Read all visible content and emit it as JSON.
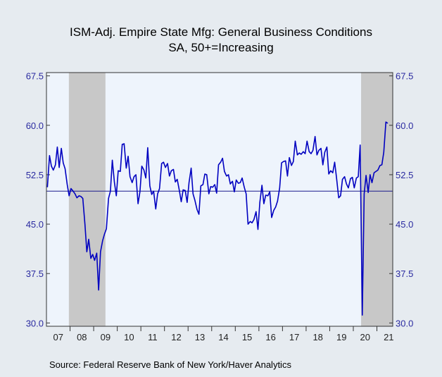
{
  "chart_data": {
    "type": "line",
    "title": "ISM-Adj. Empire State Mfg: General Business Conditions",
    "subtitle": "SA, 50+=Increasing",
    "source": "Source:  Federal Reserve Bank of New York/Haver Analytics",
    "color": "#0000c0",
    "reference_line": 50,
    "shaded_ranges": [
      [
        2007.95,
        2009.5
      ],
      [
        2020.33,
        2021.67
      ]
    ],
    "xlim": [
      2007,
      2021.67
    ],
    "ylim": [
      29.5,
      68
    ],
    "yticks": [
      {
        "value": 30,
        "label": "30.0"
      },
      37.5,
      {
        "value": 45,
        "label": "45.0"
      },
      52.5,
      {
        "value": 60,
        "label": "60.0"
      },
      67.5
    ],
    "xticks": [
      {
        "value": 2007.5,
        "label": "07"
      },
      {
        "value": 2008.5,
        "label": "08"
      },
      {
        "value": 2009.5,
        "label": "09"
      },
      {
        "value": 2010.5,
        "label": "10"
      },
      {
        "value": 2011.5,
        "label": "11"
      },
      {
        "value": 2012.5,
        "label": "12"
      },
      {
        "value": 2013.5,
        "label": "13"
      },
      {
        "value": 2014.5,
        "label": "14"
      },
      {
        "value": 2015.5,
        "label": "15"
      },
      {
        "value": 2016.5,
        "label": "16"
      },
      {
        "value": 2017.5,
        "label": "17"
      },
      {
        "value": 2018.5,
        "label": "18"
      },
      {
        "value": 2019.5,
        "label": "19"
      },
      {
        "value": 2020.5,
        "label": "20"
      },
      {
        "value": 2021.5,
        "label": "21"
      }
    ],
    "x": [
      2007.04,
      2007.13,
      2007.21,
      2007.29,
      2007.38,
      2007.46,
      2007.54,
      2007.63,
      2007.71,
      2007.79,
      2007.88,
      2007.96,
      2008.04,
      2008.13,
      2008.21,
      2008.29,
      2008.38,
      2008.46,
      2008.54,
      2008.63,
      2008.71,
      2008.79,
      2008.88,
      2008.96,
      2009.04,
      2009.13,
      2009.21,
      2009.29,
      2009.38,
      2009.46,
      2009.54,
      2009.63,
      2009.71,
      2009.79,
      2009.88,
      2009.96,
      2010.04,
      2010.13,
      2010.21,
      2010.29,
      2010.38,
      2010.46,
      2010.54,
      2010.63,
      2010.71,
      2010.79,
      2010.88,
      2010.96,
      2011.04,
      2011.13,
      2011.21,
      2011.29,
      2011.38,
      2011.46,
      2011.54,
      2011.63,
      2011.71,
      2011.79,
      2011.88,
      2011.96,
      2012.04,
      2012.13,
      2012.21,
      2012.29,
      2012.38,
      2012.46,
      2012.54,
      2012.63,
      2012.71,
      2012.79,
      2012.88,
      2012.96,
      2013.04,
      2013.13,
      2013.21,
      2013.29,
      2013.38,
      2013.46,
      2013.54,
      2013.63,
      2013.71,
      2013.79,
      2013.88,
      2013.96,
      2014.04,
      2014.13,
      2014.21,
      2014.29,
      2014.38,
      2014.46,
      2014.54,
      2014.63,
      2014.71,
      2014.79,
      2014.88,
      2014.96,
      2015.04,
      2015.13,
      2015.21,
      2015.29,
      2015.38,
      2015.46,
      2015.54,
      2015.63,
      2015.71,
      2015.79,
      2015.88,
      2015.96,
      2016.04,
      2016.13,
      2016.21,
      2016.29,
      2016.38,
      2016.46,
      2016.54,
      2016.63,
      2016.71,
      2016.79,
      2016.88,
      2016.96,
      2017.04,
      2017.13,
      2017.21,
      2017.29,
      2017.38,
      2017.46,
      2017.54,
      2017.63,
      2017.71,
      2017.79,
      2017.88,
      2017.96,
      2018.04,
      2018.13,
      2018.21,
      2018.29,
      2018.38,
      2018.46,
      2018.54,
      2018.63,
      2018.71,
      2018.79,
      2018.88,
      2018.96,
      2019.04,
      2019.13,
      2019.21,
      2019.29,
      2019.38,
      2019.46,
      2019.54,
      2019.63,
      2019.71,
      2019.79,
      2019.88,
      2019.96,
      2020.04,
      2020.13,
      2020.21,
      2020.29,
      2020.38,
      2020.46,
      2020.54,
      2020.63,
      2020.71,
      2020.79,
      2020.88,
      2020.96,
      2021.04,
      2021.13,
      2021.21,
      2021.29,
      2021.38,
      2021.46
    ],
    "values": [
      50.6,
      55.4,
      53.8,
      53.2,
      54.0,
      56.7,
      53.6,
      56.5,
      54.3,
      53.4,
      51.0,
      49.3,
      50.4,
      50.0,
      49.6,
      49.0,
      49.3,
      49.2,
      48.9,
      45.0,
      40.8,
      42.7,
      39.8,
      40.4,
      39.5,
      40.6,
      35.0,
      40.8,
      42.5,
      43.5,
      44.3,
      48.9,
      50.0,
      54.7,
      51.3,
      49.3,
      53.1,
      53.0,
      57.1,
      57.2,
      53.5,
      55.3,
      52.2,
      51.3,
      52.2,
      52.5,
      48.1,
      49.9,
      53.8,
      53.2,
      52.0,
      56.6,
      50.8,
      49.5,
      50.0,
      47.3,
      49.6,
      50.4,
      54.2,
      54.4,
      53.6,
      54.2,
      52.3,
      53.1,
      53.3,
      51.4,
      51.8,
      50.1,
      48.4,
      50.2,
      50.1,
      48.3,
      51.3,
      53.5,
      49.6,
      48.6,
      47.2,
      46.5,
      50.8,
      51.0,
      52.6,
      52.5,
      49.6,
      50.7,
      50.6,
      51.0,
      49.7,
      54.0,
      54.4,
      55.0,
      53.0,
      52.3,
      52.5,
      51.1,
      51.5,
      49.9,
      51.7,
      51.2,
      51.3,
      52.0,
      50.6,
      49.6,
      45.0,
      45.4,
      45.2,
      45.7,
      46.9,
      44.2,
      48.3,
      50.9,
      48.1,
      49.4,
      49.3,
      49.9,
      46.0,
      47.1,
      47.6,
      48.5,
      50.5,
      54.3,
      54.5,
      54.6,
      52.3,
      55.1,
      53.9,
      54.5,
      57.6,
      55.5,
      55.8,
      55.6,
      56.0,
      55.7,
      57.6,
      56.0,
      55.7,
      56.2,
      58.3,
      55.5,
      56.2,
      56.5,
      54.0,
      55.9,
      56.7,
      52.6,
      53.1,
      52.8,
      54.4,
      52.0,
      49.0,
      49.3,
      51.8,
      52.2,
      51.1,
      50.5,
      51.9,
      52.1,
      50.5,
      52.0,
      52.2,
      57.0,
      31.2,
      49.6,
      52.4,
      49.8,
      52.5,
      51.3,
      52.8,
      53.0,
      53.2,
      53.9,
      54.0,
      55.9,
      60.5,
      60.3
    ]
  }
}
